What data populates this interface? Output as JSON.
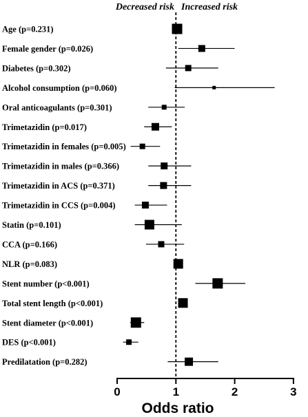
{
  "chart_data": {
    "type": "forest",
    "xlabel": "Odds ratio",
    "left_header": "Decreased risk",
    "right_header": "Increased risk",
    "reference_line": 1,
    "xlim": [
      0,
      3
    ],
    "xticks": [
      0,
      1,
      2,
      3
    ],
    "xtick_labels": [
      "0",
      "1",
      "2",
      "3"
    ],
    "rows": [
      {
        "label": "Age (p=0.231)",
        "or": 1.02,
        "ci": [
          1.01,
          1.03
        ]
      },
      {
        "label": "Female gender (p=0.026)",
        "or": 1.44,
        "ci": [
          1.04,
          2.0
        ]
      },
      {
        "label": "Diabetes (p=0.302)",
        "or": 1.21,
        "ci": [
          0.83,
          1.72
        ]
      },
      {
        "label": "Alcohol consumption (p=0.060)",
        "or": 1.65,
        "ci": [
          0.98,
          2.68
        ]
      },
      {
        "label": "Oral anticoagulants (p=0.301)",
        "or": 0.8,
        "ci": [
          0.53,
          1.15
        ]
      },
      {
        "label": "Trimetazidin (p=0.017)",
        "or": 0.65,
        "ci": [
          0.46,
          0.93
        ]
      },
      {
        "label": "Trimetazidin in females (p=0.005)",
        "or": 0.43,
        "ci": [
          0.23,
          0.73
        ]
      },
      {
        "label": "Trimetazidin in males (p=0.366)",
        "or": 0.8,
        "ci": [
          0.53,
          1.26
        ]
      },
      {
        "label": "Trimetazidin in ACS (p=0.371)",
        "or": 0.79,
        "ci": [
          0.53,
          1.26
        ]
      },
      {
        "label": "Trimetazidin in CCS (p=0.004)",
        "or": 0.48,
        "ci": [
          0.3,
          0.85
        ]
      },
      {
        "label": "Statin (p=0.101)",
        "or": 0.55,
        "ci": [
          0.3,
          1.1
        ]
      },
      {
        "label": "CCA (p=0.166)",
        "or": 0.75,
        "ci": [
          0.49,
          1.14
        ]
      },
      {
        "label": "NLR (p=0.083)",
        "or": 1.04,
        "ci": [
          0.99,
          1.08
        ]
      },
      {
        "label": "Stent number (p<0.001)",
        "or": 1.71,
        "ci": [
          1.33,
          2.18
        ]
      },
      {
        "label": "Total stent length (p<0.001)",
        "or": 1.12,
        "ci": [
          1.07,
          1.17
        ]
      },
      {
        "label": "Stent diameter (p<0.001)",
        "or": 0.32,
        "ci": [
          0.22,
          0.46
        ]
      },
      {
        "label": "DES (p<0.001)",
        "or": 0.2,
        "ci": [
          0.1,
          0.36
        ]
      },
      {
        "label": "Predilatation (p=0.282)",
        "or": 1.22,
        "ci": [
          0.86,
          1.72
        ]
      }
    ],
    "marker_sizes": [
      15,
      10,
      9,
      5,
      7,
      11,
      8,
      10,
      10,
      10,
      14,
      9,
      14,
      15,
      14,
      15,
      8,
      12
    ]
  }
}
